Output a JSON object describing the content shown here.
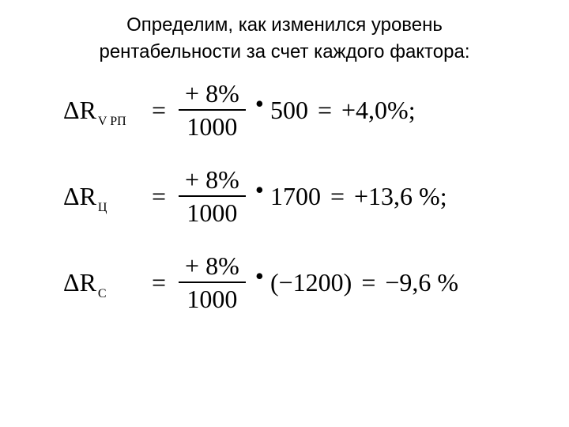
{
  "header": {
    "line1": "Определим, как изменился уровень",
    "line2": "рентабельности за счет каждого фактора:"
  },
  "equations": [
    {
      "delta": "Δ",
      "variable": "R",
      "subscript": "V РП",
      "numerator": "+ 8%",
      "denominator": "1000",
      "multiplier": "500",
      "result": "+4,0%;",
      "paren": false
    },
    {
      "delta": "Δ",
      "variable": "R",
      "subscript": "Ц",
      "numerator": "+ 8%",
      "denominator": "1000",
      "multiplier": "1700",
      "result": "+13,6 %;",
      "paren": false
    },
    {
      "delta": "Δ",
      "variable": "R",
      "subscript": "С",
      "numerator": "+ 8%",
      "denominator": "1000",
      "multiplier": "(−1200)",
      "result": "−9,6 %",
      "paren": true
    }
  ],
  "style": {
    "text_color": "#000000",
    "background_color": "#ffffff",
    "header_fontsize": 24,
    "equation_fontsize": 32,
    "subscript_fontsize": 16
  }
}
